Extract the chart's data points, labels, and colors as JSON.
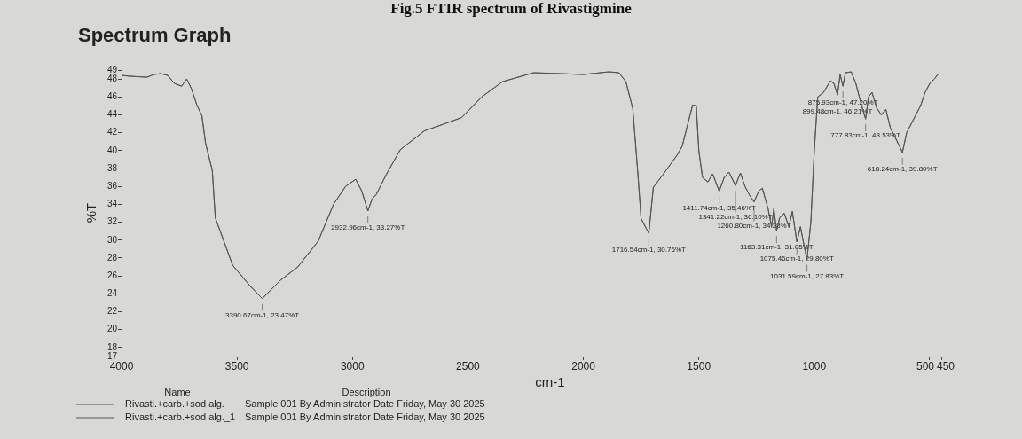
{
  "chart_data": {
    "type": "line",
    "title": "Fig.5 FTIR spectrum of Rivastigmine",
    "subtitle": "Spectrum Graph",
    "xlabel": "cm-1",
    "ylabel": "%T",
    "xlim": [
      4000,
      450
    ],
    "xticks": [
      4000,
      3500,
      3000,
      2500,
      2000,
      1500,
      1000,
      500,
      450
    ],
    "ylim": [
      17,
      49
    ],
    "yticks": [
      17,
      18,
      20,
      22,
      24,
      26,
      28,
      30,
      32,
      34,
      36,
      38,
      40,
      42,
      44,
      46,
      48,
      49
    ],
    "grid": false,
    "legend": "bottom left",
    "marker": "none",
    "line_style": "solid",
    "x": [
      4000,
      3960,
      3890,
      3860,
      3830,
      3800,
      3771,
      3740,
      3718,
      3697,
      3674,
      3652,
      3636,
      3607,
      3594,
      3519,
      3444,
      3390.67,
      3313,
      3237,
      3148,
      3082,
      3030,
      2986,
      2960,
      2932.96,
      2915,
      2897,
      2852,
      2793,
      2689,
      2601,
      2527,
      2440,
      2350,
      2216,
      2100,
      2000,
      1890,
      1846,
      1816,
      1786,
      1765,
      1750,
      1716.54,
      1697,
      1653,
      1594,
      1572,
      1527,
      1511,
      1500,
      1484,
      1461,
      1440,
      1411.74,
      1390,
      1370,
      1341.22,
      1320,
      1300,
      1280,
      1260.8,
      1240,
      1225,
      1200,
      1185,
      1175,
      1163.31,
      1150,
      1130,
      1110,
      1095,
      1075.46,
      1060,
      1045,
      1031.59,
      1015,
      1000,
      985,
      960,
      930,
      915,
      899.48,
      888,
      875.93,
      865,
      840,
      820,
      800,
      777.83,
      765,
      750,
      730,
      710,
      690,
      670,
      650,
      618.24,
      600,
      580,
      560,
      540,
      520,
      500,
      480,
      465
    ],
    "series": [
      {
        "name": "Rivasti.+carb.+sod alg.",
        "color": "#555555",
        "values": [
          48.4,
          48.3,
          48.2,
          48.5,
          48.6,
          48.4,
          47.5,
          47.2,
          48.0,
          46.9,
          45.1,
          43.9,
          40.8,
          37.8,
          32.5,
          27.2,
          24.9,
          23.47,
          25.5,
          27.0,
          29.9,
          34.0,
          36.0,
          36.8,
          35.5,
          33.27,
          34.6,
          35.1,
          37.4,
          40.1,
          42.2,
          43.0,
          43.7,
          46.0,
          47.7,
          48.7,
          48.6,
          48.5,
          48.8,
          48.7,
          47.7,
          44.7,
          37.8,
          32.4,
          30.76,
          35.9,
          37.4,
          39.5,
          40.5,
          45.1,
          45.0,
          40.0,
          37.0,
          36.5,
          37.4,
          35.46,
          37.0,
          37.6,
          36.1,
          37.5,
          36.0,
          35.0,
          34.28,
          35.5,
          35.8,
          33.5,
          31.5,
          33.5,
          31.05,
          32.5,
          33.0,
          31.5,
          33.2,
          29.8,
          31.5,
          29.5,
          27.83,
          32.0,
          40.0,
          46.0,
          46.5,
          47.8,
          47.5,
          46.21,
          48.5,
          47.2,
          48.7,
          48.8,
          47.5,
          45.5,
          43.53,
          46.0,
          46.5,
          44.8,
          44.0,
          44.6,
          42.5,
          41.5,
          39.8,
          42.0,
          43.0,
          44.0,
          45.0,
          46.5,
          47.5,
          48.0,
          48.5
        ]
      },
      {
        "name": "Rivasti.+carb.+sod alg._1",
        "color": "#555555",
        "values": [
          48.4,
          48.3,
          48.2,
          48.5,
          48.6,
          48.4,
          47.5,
          47.2,
          48.0,
          46.9,
          45.1,
          43.9,
          40.8,
          37.8,
          32.5,
          27.2,
          24.9,
          23.47,
          25.5,
          27.0,
          29.9,
          34.0,
          36.0,
          36.8,
          35.5,
          33.27,
          34.6,
          35.1,
          37.4,
          40.1,
          42.2,
          43.0,
          43.7,
          46.0,
          47.7,
          48.7,
          48.6,
          48.5,
          48.8,
          48.7,
          47.7,
          44.7,
          37.8,
          32.4,
          30.76,
          35.9,
          37.4,
          39.5,
          40.5,
          45.1,
          45.0,
          40.0,
          37.0,
          36.5,
          37.4,
          35.46,
          37.0,
          37.6,
          36.1,
          37.5,
          36.0,
          35.0,
          34.28,
          35.5,
          35.8,
          33.5,
          31.5,
          33.5,
          31.05,
          32.5,
          33.0,
          31.5,
          33.2,
          29.8,
          31.5,
          29.5,
          27.83,
          32.0,
          40.0,
          46.0,
          46.5,
          47.8,
          47.5,
          46.21,
          48.5,
          47.2,
          48.7,
          48.8,
          47.5,
          45.5,
          43.53,
          46.0,
          46.5,
          44.8,
          44.0,
          44.6,
          42.5,
          41.5,
          39.8,
          42.0,
          43.0,
          44.0,
          45.0,
          46.5,
          47.5,
          48.0,
          48.5
        ]
      }
    ],
    "annotations": [
      {
        "text": "3390.67cm-1, 23.47%T",
        "x": 3390.67,
        "y": 23.47
      },
      {
        "text": "2932.96cm-1, 33.27%T",
        "x": 2932.96,
        "y": 33.27
      },
      {
        "text": "1716.54cm-1, 30.76%T",
        "x": 1716.54,
        "y": 30.76
      },
      {
        "text": "1411.74cm-1, 35.46%T",
        "x": 1411.74,
        "y": 35.46
      },
      {
        "text": "1341.22cm-1, 36.10%T",
        "x": 1341.22,
        "y": 36.1
      },
      {
        "text": "1260.80cm-1, 34.28%T",
        "x": 1260.8,
        "y": 34.28
      },
      {
        "text": "1163.31cm-1, 31.05%T",
        "x": 1163.31,
        "y": 31.05
      },
      {
        "text": "1075.46cm-1, 29.80%T",
        "x": 1075.46,
        "y": 29.8
      },
      {
        "text": "1031.59cm-1, 27.83%T",
        "x": 1031.59,
        "y": 27.83
      },
      {
        "text": "899.48cm-1, 46.21%T",
        "x": 899.48,
        "y": 46.21
      },
      {
        "text": "875.93cm-1, 47.20%T",
        "x": 875.93,
        "y": 47.2
      },
      {
        "text": "777.83cm-1, 43.53%T",
        "x": 777.83,
        "y": 43.53
      },
      {
        "text": "618.24cm-1, 39.80%T",
        "x": 618.24,
        "y": 39.8
      },
      "Name",
      "Description",
      "Sample 001 By Administrator Date Friday, May 30 2025",
      "Sample 001 By Administrator Date Friday, May 30 2025"
    ]
  }
}
